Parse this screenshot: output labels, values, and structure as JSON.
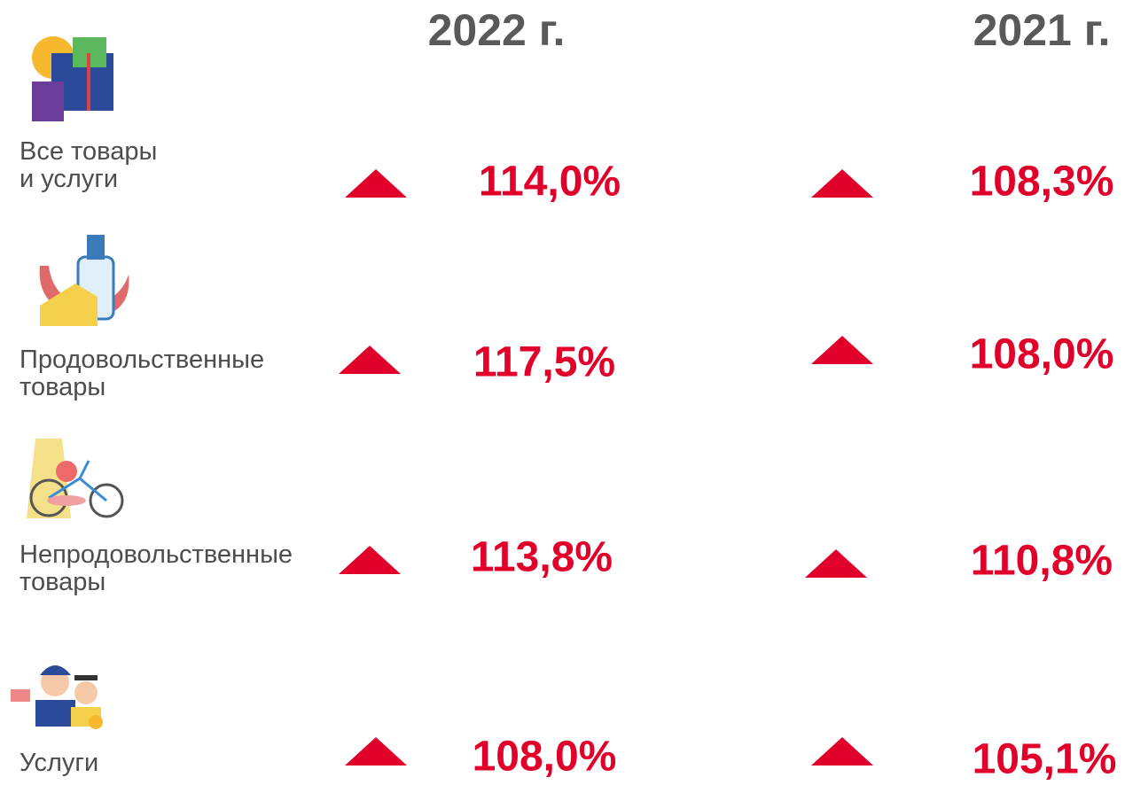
{
  "header": {
    "columns": [
      "2022 г.",
      "2021 г."
    ]
  },
  "rows": [
    {
      "label_lines": [
        "Все товары",
        "и услуги"
      ],
      "values": [
        "114,0%",
        "108,3%"
      ]
    },
    {
      "label_lines": [
        "Продовольственные",
        "товары"
      ],
      "values": [
        "117,5%",
        "108,0%"
      ]
    },
    {
      "label_lines": [
        "Непродовольственные",
        "товары"
      ],
      "values": [
        "113,8%",
        "110,8%"
      ]
    },
    {
      "label_lines": [
        "Услуги"
      ],
      "values": [
        "108,0%",
        "105,1%"
      ]
    }
  ]
}
